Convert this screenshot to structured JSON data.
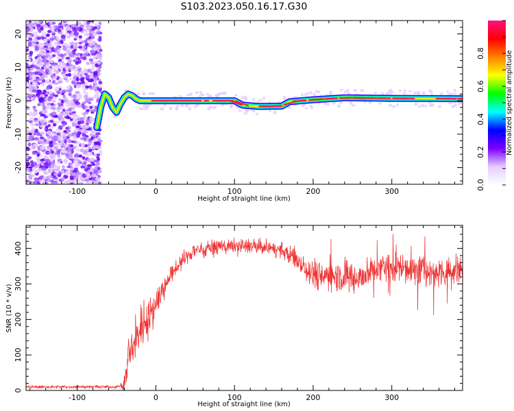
{
  "title": "S103.2023.050.16.17.G30",
  "chart_data": [
    {
      "type": "heatmap",
      "xlabel": "Height of straight line (km)",
      "ylabel": "Frequency (Hz)",
      "xlim": [
        -165,
        390
      ],
      "ylim": [
        -25,
        24
      ],
      "xticks": [
        -100,
        0,
        100,
        200,
        300
      ],
      "yticks": [
        -20,
        -10,
        0,
        10,
        20
      ],
      "colorbar": {
        "label": "Normalized spectral amplitude",
        "range": [
          0,
          1
        ],
        "ticks": [
          0.0,
          0.2,
          0.4,
          0.6,
          0.8
        ],
        "colormap": [
          "#ffffff",
          "#e6ccff",
          "#7a00ff",
          "#0000ff",
          "#00ffff",
          "#00ff00",
          "#ffff00",
          "#ff8000",
          "#ff0000",
          "#ff1080"
        ]
      },
      "noise_region": {
        "x_range": [
          -165,
          -70
        ],
        "y_range": [
          -25,
          24
        ]
      },
      "ridge": [
        {
          "x": -75,
          "y": -8
        },
        {
          "x": -70,
          "y": -2
        },
        {
          "x": -65,
          "y": 2
        },
        {
          "x": -60,
          "y": 1
        },
        {
          "x": -55,
          "y": -2
        },
        {
          "x": -50,
          "y": -3.5
        },
        {
          "x": -45,
          "y": -1
        },
        {
          "x": -40,
          "y": 1
        },
        {
          "x": -35,
          "y": 2
        },
        {
          "x": -30,
          "y": 1.5
        },
        {
          "x": -25,
          "y": 0.5
        },
        {
          "x": -20,
          "y": 0
        },
        {
          "x": -10,
          "y": 0
        },
        {
          "x": 0,
          "y": 0
        },
        {
          "x": 40,
          "y": 0
        },
        {
          "x": 100,
          "y": 0
        },
        {
          "x": 110,
          "y": -1.3
        },
        {
          "x": 130,
          "y": -1.7
        },
        {
          "x": 160,
          "y": -1.6
        },
        {
          "x": 170,
          "y": -0.3
        },
        {
          "x": 200,
          "y": 0.3
        },
        {
          "x": 240,
          "y": 0.9
        },
        {
          "x": 300,
          "y": 0.7
        },
        {
          "x": 390,
          "y": 0.6
        }
      ]
    },
    {
      "type": "line",
      "xlabel": "Height of straight line (km)",
      "ylabel": "SNR (10 * v/v)",
      "xlim": [
        -165,
        390
      ],
      "ylim": [
        0,
        465
      ],
      "xticks": [
        -100,
        0,
        100,
        200,
        300
      ],
      "yticks": [
        0,
        100,
        200,
        300,
        400
      ],
      "line_color": "#ee3333",
      "envelope": [
        {
          "x": -165,
          "y": 10
        },
        {
          "x": -50,
          "y": 10
        },
        {
          "x": -40,
          "y": 15
        },
        {
          "x": -35,
          "y": 90
        },
        {
          "x": -25,
          "y": 150
        },
        {
          "x": -15,
          "y": 200
        },
        {
          "x": -5,
          "y": 220
        },
        {
          "x": 5,
          "y": 270
        },
        {
          "x": 15,
          "y": 310
        },
        {
          "x": 30,
          "y": 360
        },
        {
          "x": 50,
          "y": 395
        },
        {
          "x": 80,
          "y": 405
        },
        {
          "x": 120,
          "y": 408
        },
        {
          "x": 160,
          "y": 395
        },
        {
          "x": 180,
          "y": 370
        },
        {
          "x": 200,
          "y": 330
        },
        {
          "x": 230,
          "y": 320
        },
        {
          "x": 260,
          "y": 320
        },
        {
          "x": 290,
          "y": 350
        },
        {
          "x": 320,
          "y": 345
        },
        {
          "x": 360,
          "y": 330
        },
        {
          "x": 390,
          "y": 345
        }
      ],
      "noise_amplitude": [
        {
          "x": -165,
          "y": 5
        },
        {
          "x": -45,
          "y": 5
        },
        {
          "x": -35,
          "y": 80
        },
        {
          "x": -10,
          "y": 70
        },
        {
          "x": 20,
          "y": 30
        },
        {
          "x": 150,
          "y": 25
        },
        {
          "x": 200,
          "y": 55
        },
        {
          "x": 390,
          "y": 55
        }
      ]
    }
  ]
}
